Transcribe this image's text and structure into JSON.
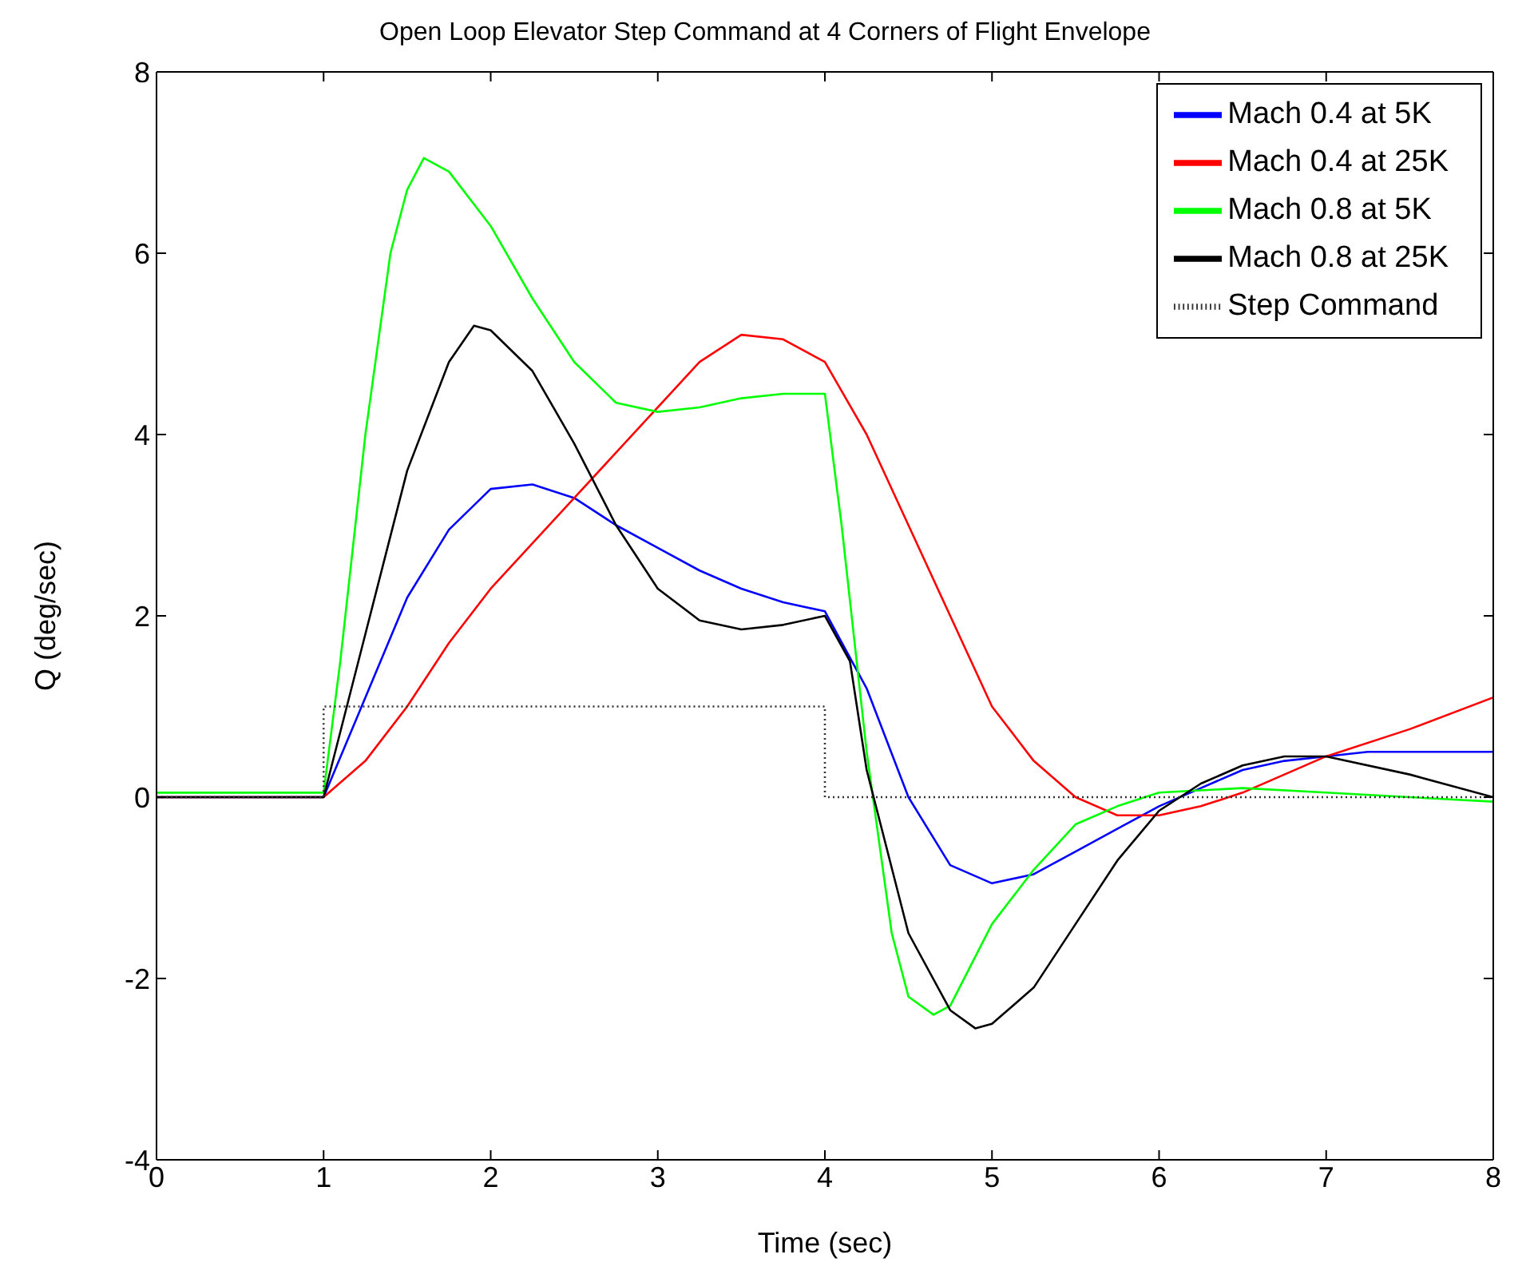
{
  "chart_data": {
    "type": "line",
    "title": "Open Loop Elevator Step Command at 4 Corners of Flight Envelope",
    "xlabel": "Time (sec)",
    "ylabel": "Q (deg/sec)",
    "xlim": [
      0,
      8
    ],
    "ylim": [
      -4,
      8
    ],
    "xticks": [
      0,
      1,
      2,
      3,
      4,
      5,
      6,
      7,
      8
    ],
    "yticks": [
      -4,
      -2,
      0,
      2,
      4,
      6,
      8
    ],
    "legend": "top right",
    "series": [
      {
        "name": "Mach 0.4 at 5K",
        "color": "#0000ff",
        "x": [
          0,
          1,
          1.25,
          1.5,
          1.75,
          2,
          2.25,
          2.5,
          2.75,
          3,
          3.25,
          3.5,
          3.75,
          4,
          4.25,
          4.5,
          4.75,
          5,
          5.25,
          5.5,
          5.75,
          6,
          6.25,
          6.5,
          6.75,
          7,
          7.25,
          8
        ],
        "values": [
          0,
          0,
          1.1,
          2.2,
          2.95,
          3.4,
          3.45,
          3.3,
          3.0,
          2.75,
          2.5,
          2.3,
          2.15,
          2.05,
          1.2,
          0,
          -0.75,
          -0.95,
          -0.85,
          -0.6,
          -0.35,
          -0.1,
          0.1,
          0.3,
          0.4,
          0.45,
          0.5,
          0.5
        ]
      },
      {
        "name": "Mach 0.4 at 25K",
        "color": "#ff0000",
        "x": [
          0,
          1,
          1.25,
          1.5,
          1.75,
          2,
          2.25,
          2.5,
          2.75,
          3,
          3.25,
          3.5,
          3.75,
          4,
          4.25,
          4.5,
          4.75,
          5,
          5.25,
          5.5,
          5.75,
          6,
          6.25,
          6.5,
          6.75,
          7,
          7.5,
          8
        ],
        "values": [
          0,
          0,
          0.4,
          1.0,
          1.7,
          2.3,
          2.8,
          3.3,
          3.8,
          4.3,
          4.8,
          5.1,
          5.05,
          4.8,
          4.0,
          3.0,
          2.0,
          1.0,
          0.4,
          0,
          -0.2,
          -0.2,
          -0.1,
          0.05,
          0.25,
          0.45,
          0.75,
          1.1
        ]
      },
      {
        "name": "Mach 0.8 at 5K",
        "color": "#00ff00",
        "x": [
          0,
          1,
          1.1,
          1.25,
          1.4,
          1.5,
          1.6,
          1.75,
          2,
          2.25,
          2.5,
          2.75,
          3,
          3.25,
          3.5,
          3.75,
          4,
          4.1,
          4.25,
          4.4,
          4.5,
          4.65,
          4.75,
          5,
          5.25,
          5.5,
          5.75,
          6,
          6.5,
          7,
          7.5,
          8
        ],
        "values": [
          0.05,
          0.05,
          1.5,
          4.0,
          6.0,
          6.7,
          7.05,
          6.9,
          6.3,
          5.5,
          4.8,
          4.35,
          4.25,
          4.3,
          4.4,
          4.45,
          4.45,
          3.0,
          0.5,
          -1.5,
          -2.2,
          -2.4,
          -2.3,
          -1.4,
          -0.8,
          -0.3,
          -0.1,
          0.05,
          0.1,
          0.05,
          0,
          -0.05
        ]
      },
      {
        "name": "Mach 0.8 at 25K",
        "color": "#000000",
        "x": [
          0,
          1,
          1.25,
          1.5,
          1.75,
          1.9,
          2,
          2.25,
          2.5,
          2.75,
          3,
          3.25,
          3.5,
          3.75,
          4,
          4.15,
          4.25,
          4.5,
          4.75,
          4.9,
          5,
          5.25,
          5.5,
          5.75,
          6,
          6.25,
          6.5,
          6.75,
          7,
          7.5,
          8
        ],
        "values": [
          0,
          0,
          1.8,
          3.6,
          4.8,
          5.2,
          5.15,
          4.7,
          3.9,
          3.0,
          2.3,
          1.95,
          1.85,
          1.9,
          2.0,
          1.5,
          0.3,
          -1.5,
          -2.35,
          -2.55,
          -2.5,
          -2.1,
          -1.4,
          -0.7,
          -0.15,
          0.15,
          0.35,
          0.45,
          0.45,
          0.25,
          0
        ]
      },
      {
        "name": "Step Command",
        "color": "#333333",
        "line_style": "dotted",
        "x": [
          0,
          1,
          1,
          4,
          4,
          8
        ],
        "values": [
          0,
          0,
          1,
          1,
          0,
          0
        ]
      }
    ]
  }
}
